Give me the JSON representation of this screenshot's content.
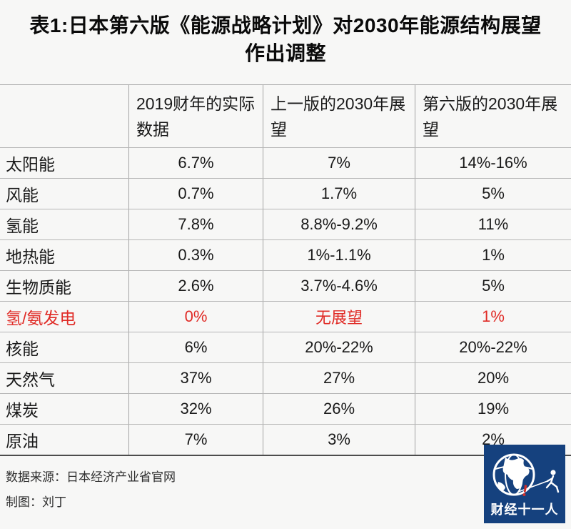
{
  "title": {
    "line1": "表1:日本第六版《能源战略计划》对2030年能源结构展望",
    "line2": "作出调整"
  },
  "chart_data": {
    "type": "table",
    "title": "表1:日本第六版《能源战略计划》对2030年能源结构展望作出调整",
    "columns": [
      "",
      "2019财年的实际数据",
      "上一版的2030年展望",
      "第六版的2030年展望"
    ],
    "rows": [
      {
        "cells": [
          "太阳能",
          "6.7%",
          "7%",
          "14%-16%"
        ],
        "highlight": false
      },
      {
        "cells": [
          "风能",
          "0.7%",
          "1.7%",
          "5%"
        ],
        "highlight": false
      },
      {
        "cells": [
          "氢能",
          "7.8%",
          "8.8%-9.2%",
          "11%"
        ],
        "highlight": false
      },
      {
        "cells": [
          "地热能",
          "0.3%",
          "1%-1.1%",
          "1%"
        ],
        "highlight": false
      },
      {
        "cells": [
          "生物质能",
          "2.6%",
          "3.7%-4.6%",
          "5%"
        ],
        "highlight": false
      },
      {
        "cells": [
          "氢/氨发电",
          "0%",
          "无展望",
          "1%"
        ],
        "highlight": true
      },
      {
        "cells": [
          "核能",
          "6%",
          "20%-22%",
          "20%-22%"
        ],
        "highlight": false
      },
      {
        "cells": [
          "天然气",
          "37%",
          "27%",
          "20%"
        ],
        "highlight": false
      },
      {
        "cells": [
          "煤炭",
          "32%",
          "26%",
          "19%"
        ],
        "highlight": false
      },
      {
        "cells": [
          "原油",
          "7%",
          "3%",
          "2%"
        ],
        "highlight": false
      }
    ],
    "legend_position": "none",
    "grid": true
  },
  "footer": {
    "source": "数据来源：日本经济产业省官网",
    "credit": "制图：刘丁"
  },
  "logo": {
    "text": "财经十一人",
    "bg_color": "#15417e",
    "accent_red": "#d1302c"
  },
  "colors": {
    "highlight_red": "#e02b26",
    "border_light": "#b6b6b6",
    "border_dark": "#4d4d4d",
    "text": "#1a1a1a"
  }
}
